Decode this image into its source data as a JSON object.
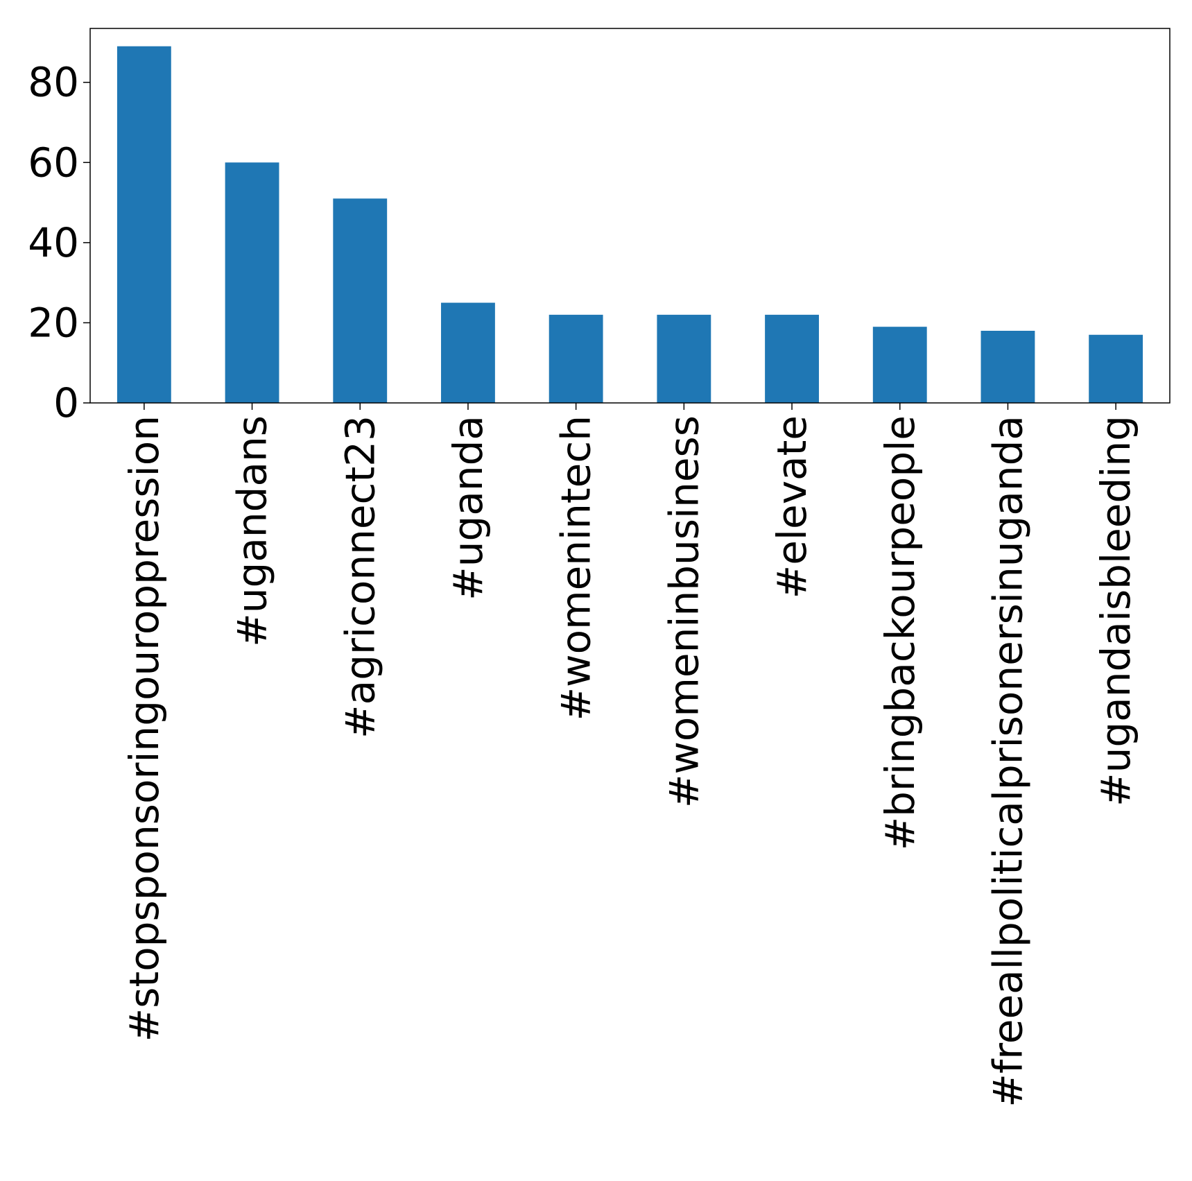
{
  "chart_data": {
    "type": "bar",
    "title": "",
    "xlabel": "",
    "ylabel": "",
    "categories": [
      "#stopsponsoringouroppression",
      "#ugandans",
      "#agriconnect23",
      "#uganda",
      "#womenintech",
      "#womeninbusiness",
      "#elevate",
      "#bringbackourpeople",
      "#freeallpoliticalprisonersinuganda",
      "#ugandaisbleeding"
    ],
    "values": [
      89,
      60,
      51,
      25,
      22,
      22,
      22,
      19,
      18,
      17
    ],
    "ylim": [
      0,
      93.45
    ],
    "yticks": [
      0,
      20,
      40,
      60,
      80
    ],
    "grid": false,
    "legend": "none",
    "bar_color": "#1f77b4"
  }
}
